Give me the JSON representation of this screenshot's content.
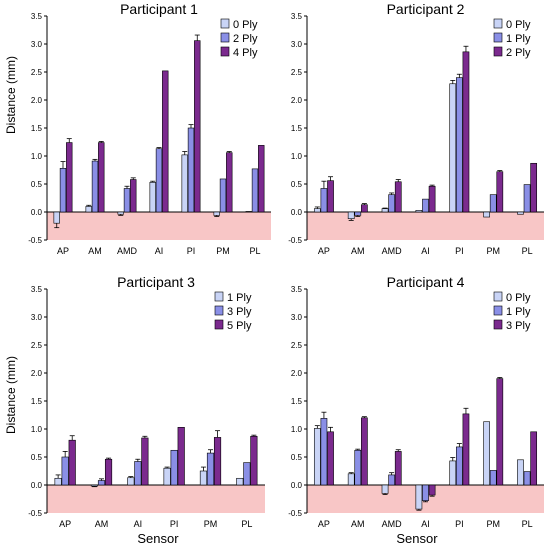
{
  "figure": {
    "ylabel": "Distance (mm)",
    "xlabel": "Sensor"
  },
  "chart_data": [
    {
      "type": "bar",
      "title": "Participant 1",
      "ylim": [
        -0.5,
        3.5
      ],
      "yticks": [
        "-0.5",
        "0.0",
        "0.5",
        "1.0",
        "1.5",
        "2.0",
        "2.5",
        "3.0",
        "3.5"
      ],
      "negative_region_color": "#f8c6c6",
      "legend_position": "top-right",
      "categories": [
        "AP",
        "AM",
        "AMD",
        "AI",
        "PI",
        "PM",
        "PL"
      ],
      "series": [
        {
          "name": "0 Ply",
          "color": "#c9d4f6",
          "values": [
            -0.2,
            0.1,
            -0.04,
            0.53,
            1.02,
            -0.06,
            0.01
          ],
          "errors": [
            0.08,
            0.02,
            0.02,
            0.02,
            0.06,
            0.02,
            0.0
          ]
        },
        {
          "name": "2 Ply",
          "color": "#8a8fe6",
          "values": [
            0.78,
            0.91,
            0.42,
            1.13,
            1.5,
            0.59,
            0.77
          ],
          "errors": [
            0.12,
            0.03,
            0.04,
            0.02,
            0.06,
            0.0,
            0.0
          ]
        },
        {
          "name": "4 Ply",
          "color": "#7b2a8e",
          "values": [
            1.24,
            1.24,
            0.58,
            2.52,
            3.06,
            1.06,
            1.19
          ],
          "errors": [
            0.07,
            0.02,
            0.03,
            0.0,
            0.1,
            0.02,
            0.0
          ]
        }
      ]
    },
    {
      "type": "bar",
      "title": "Participant 2",
      "ylim": [
        -0.5,
        3.5
      ],
      "yticks": [
        "-0.5",
        "0.0",
        "0.5",
        "1.0",
        "1.5",
        "2.0",
        "2.5",
        "3.0",
        "3.5"
      ],
      "negative_region_color": "#f8c6c6",
      "legend_position": "top-right",
      "categories": [
        "AP",
        "AM",
        "AMD",
        "AI",
        "PI",
        "PM",
        "PL"
      ],
      "series": [
        {
          "name": "0 Ply",
          "color": "#c9d4f6",
          "values": [
            0.06,
            -0.12,
            0.06,
            0.03,
            2.29,
            -0.09,
            -0.04
          ],
          "errors": [
            0.03,
            0.03,
            0.01,
            0.0,
            0.06,
            0.0,
            0.0
          ]
        },
        {
          "name": "1 Ply",
          "color": "#8a8fe6",
          "values": [
            0.42,
            -0.06,
            0.31,
            0.23,
            2.4,
            0.31,
            0.49
          ],
          "errors": [
            0.13,
            0.02,
            0.03,
            0.0,
            0.06,
            0.0,
            0.0
          ]
        },
        {
          "name": "2 Ply",
          "color": "#7b2a8e",
          "values": [
            0.56,
            0.13,
            0.54,
            0.46,
            2.86,
            0.72,
            0.87
          ],
          "errors": [
            0.07,
            0.02,
            0.04,
            0.02,
            0.1,
            0.02,
            0.0
          ]
        }
      ]
    },
    {
      "type": "bar",
      "title": "Participant 3",
      "ylim": [
        -0.5,
        3.5
      ],
      "yticks": [
        "-0.5",
        "0.0",
        "0.5",
        "1.0",
        "1.5",
        "2.0",
        "2.5",
        "3.0",
        "3.5"
      ],
      "negative_region_color": "#f8c6c6",
      "legend_position": "top-right",
      "categories": [
        "AP",
        "AM",
        "AI",
        "PI",
        "PM",
        "PL"
      ],
      "series": [
        {
          "name": "1 Ply",
          "color": "#c9d4f6",
          "values": [
            0.12,
            -0.02,
            0.13,
            0.3,
            0.25,
            0.12
          ],
          "errors": [
            0.06,
            0.01,
            0.02,
            0.02,
            0.07,
            0.0
          ]
        },
        {
          "name": "3 Ply",
          "color": "#8a8fe6",
          "values": [
            0.5,
            0.08,
            0.42,
            0.62,
            0.57,
            0.4
          ],
          "errors": [
            0.1,
            0.03,
            0.04,
            0.0,
            0.06,
            0.0
          ]
        },
        {
          "name": "5 Ply",
          "color": "#7b2a8e",
          "values": [
            0.8,
            0.46,
            0.84,
            1.03,
            0.85,
            0.87
          ],
          "errors": [
            0.08,
            0.02,
            0.03,
            0.0,
            0.12,
            0.02
          ]
        }
      ]
    },
    {
      "type": "bar",
      "title": "Participant 4",
      "ylim": [
        -0.5,
        3.5
      ],
      "yticks": [
        "-0.5",
        "0.0",
        "0.5",
        "1.0",
        "1.5",
        "2.0",
        "2.5",
        "3.0",
        "3.5"
      ],
      "negative_region_color": "#f8c6c6",
      "legend_position": "top-right",
      "categories": [
        "AP",
        "AM",
        "AMD",
        "AI",
        "PI",
        "PM",
        "PL"
      ],
      "series": [
        {
          "name": "0 Ply",
          "color": "#c9d4f6",
          "values": [
            1.01,
            0.2,
            -0.15,
            -0.43,
            0.43,
            1.13,
            0.45
          ],
          "errors": [
            0.05,
            0.02,
            0.02,
            0.02,
            0.06,
            0.0,
            0.0
          ]
        },
        {
          "name": "1 Ply",
          "color": "#8a8fe6",
          "values": [
            1.19,
            0.62,
            0.18,
            -0.28,
            0.68,
            0.26,
            0.24
          ],
          "errors": [
            0.11,
            0.02,
            0.04,
            0.02,
            0.06,
            0.0,
            0.0
          ]
        },
        {
          "name": "3 Ply",
          "color": "#7b2a8e",
          "values": [
            0.95,
            1.2,
            0.6,
            -0.18,
            1.27,
            1.9,
            0.95
          ],
          "errors": [
            0.08,
            0.02,
            0.03,
            0.02,
            0.1,
            0.02,
            0.0
          ]
        }
      ]
    }
  ]
}
